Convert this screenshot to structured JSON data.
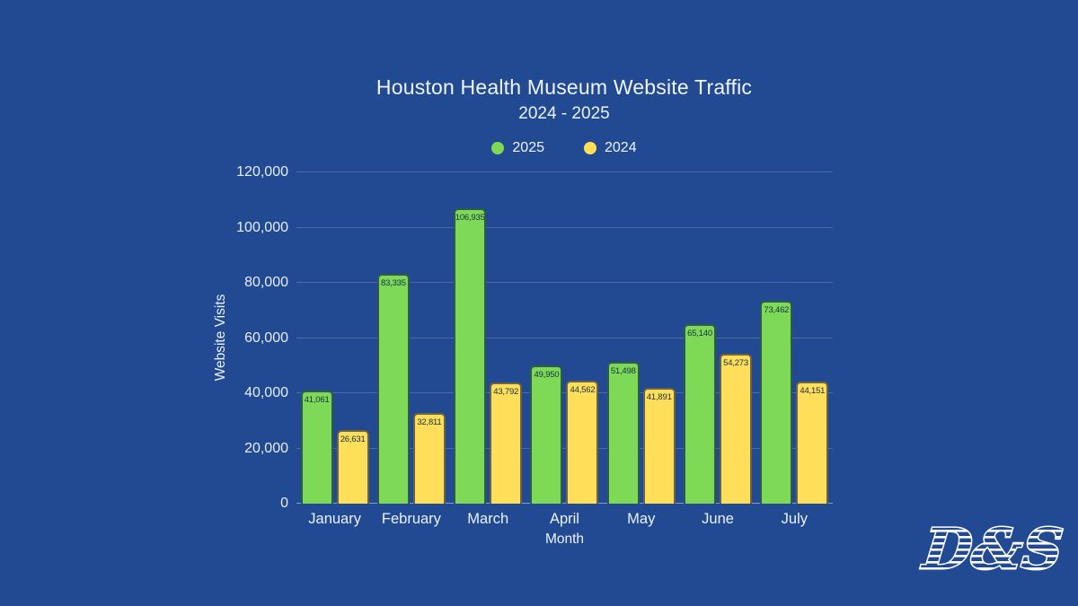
{
  "page": {
    "background": "#214A92",
    "text_color": "#EDF2FA"
  },
  "header": {
    "title": "Houston Health Museum Website Traffic",
    "subtitle": "2024 - 2025"
  },
  "logo": {
    "text": "D&S"
  },
  "chart_data": {
    "type": "bar",
    "title": "Houston Health Museum Website Traffic",
    "subtitle": "2024 - 2025",
    "xlabel": "Month",
    "ylabel": "Website Visits",
    "categories": [
      "January",
      "February",
      "March",
      "April",
      "May",
      "June",
      "July"
    ],
    "series": [
      {
        "name": "2025",
        "color": "#7ED957",
        "edge_color": "#2E5C48",
        "values": [
          41061,
          83335,
          106935,
          49950,
          51498,
          65140,
          73462
        ]
      },
      {
        "name": "2024",
        "color": "#FFDE59",
        "edge_color": "#6B6440",
        "values": [
          26631,
          32811,
          43792,
          44562,
          41891,
          54273,
          44151
        ]
      }
    ],
    "ylim": [
      0,
      120000
    ],
    "yticks": [
      0,
      20000,
      40000,
      60000,
      80000,
      100000,
      120000
    ],
    "grid": true,
    "legend_position": "top",
    "bar_label_color": "#14304A"
  }
}
